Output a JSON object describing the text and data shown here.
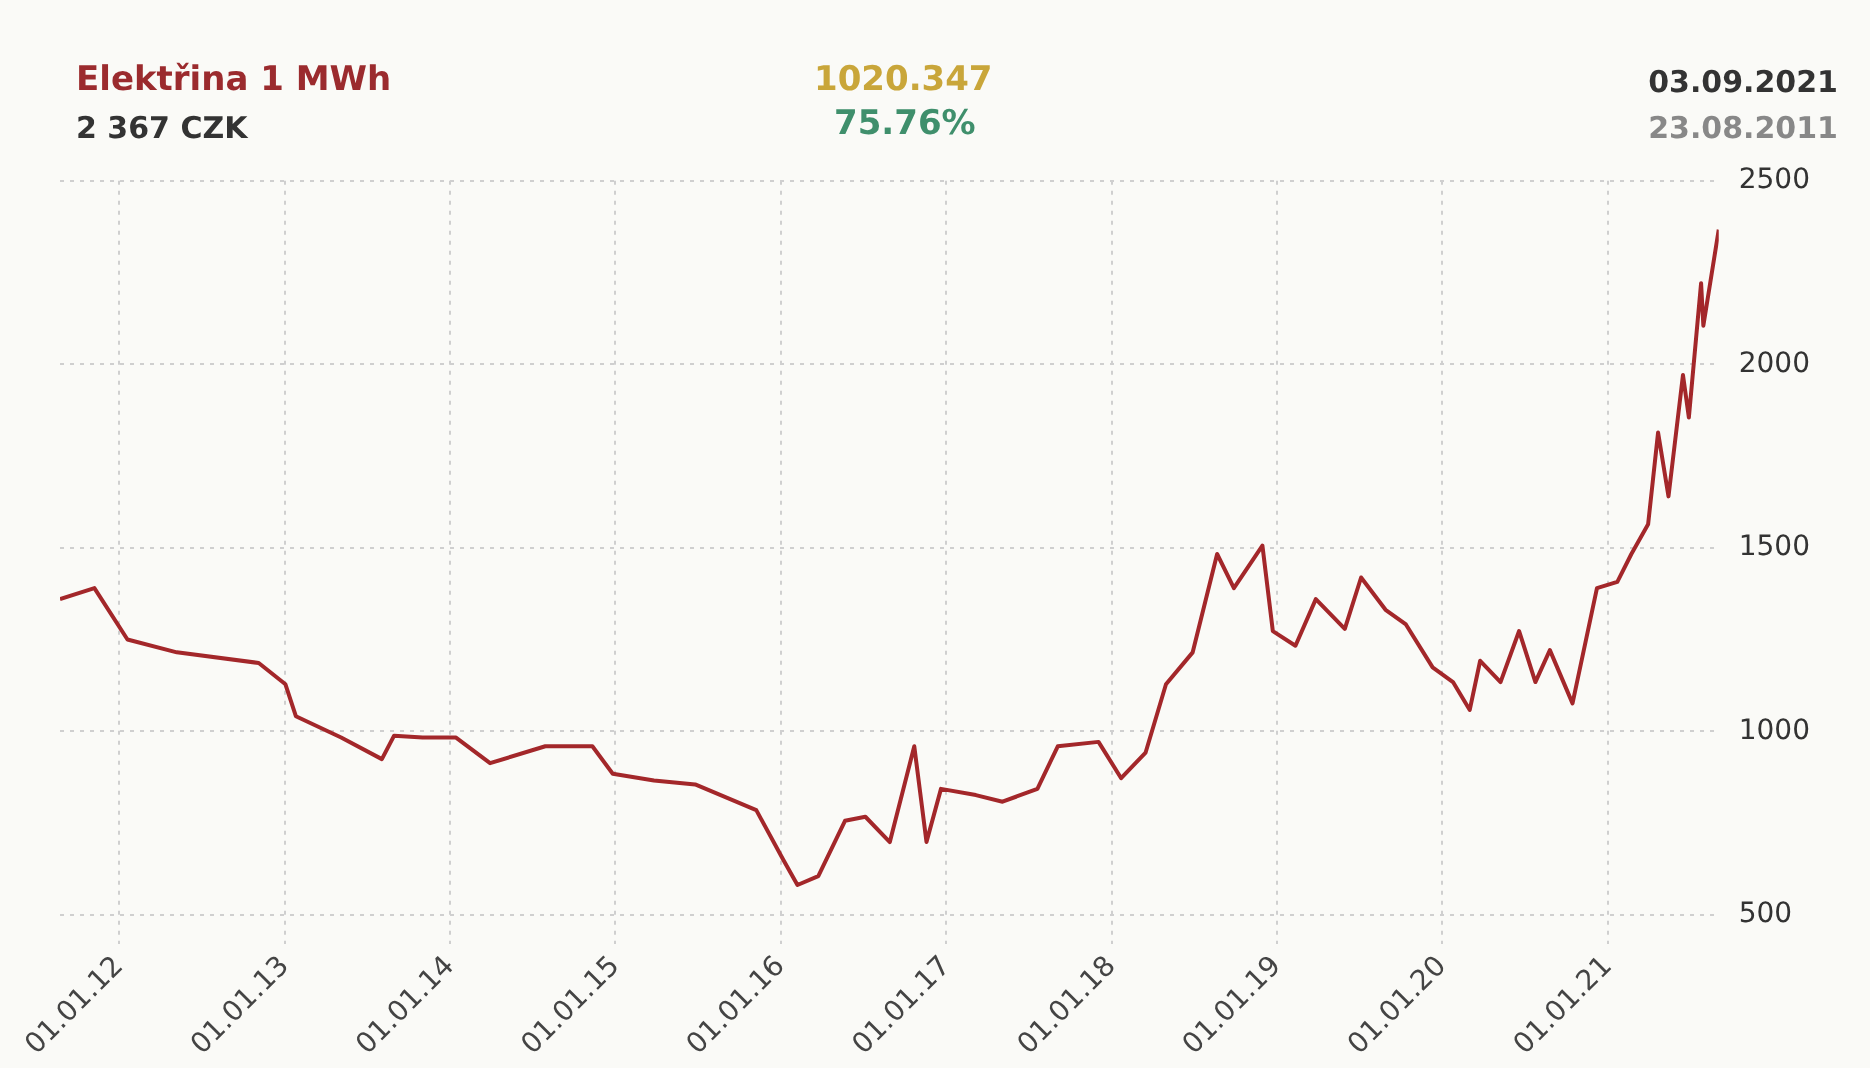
{
  "chart_data": {
    "type": "line",
    "title": "Elektřina 1 MWh",
    "subtitle": "2 367 CZK",
    "annotations": [
      "1020.347",
      "75.76%",
      "03.09.2021",
      "23.08.2011"
    ],
    "x": [
      "2011-08-23",
      "2011-11-07",
      "2012-01-19",
      "2012-05-07",
      "2012-11-04",
      "2013-01-02",
      "2013-01-25",
      "2013-05-05",
      "2013-08-03",
      "2013-08-30",
      "2013-11-01",
      "2014-01-13",
      "2014-03-30",
      "2014-07-30",
      "2014-11-11",
      "2014-12-26",
      "2015-03-27",
      "2015-06-26",
      "2015-11-08",
      "2016-01-06",
      "2016-02-07",
      "2016-03-24",
      "2016-05-22",
      "2016-07-06",
      "2016-08-29",
      "2016-10-22",
      "2016-11-18",
      "2016-12-20",
      "2017-03-07",
      "2017-05-05",
      "2017-07-21",
      "2017-09-04",
      "2017-12-03",
      "2018-01-22",
      "2018-03-17",
      "2018-05-01",
      "2018-06-29",
      "2018-08-22",
      "2018-09-28",
      "2018-11-30",
      "2018-12-23",
      "2019-02-11",
      "2019-03-28",
      "2019-05-31",
      "2019-07-06",
      "2019-08-29",
      "2019-10-13",
      "2019-12-11",
      "2020-01-25",
      "2020-03-02",
      "2020-03-25",
      "2020-05-09",
      "2020-06-19",
      "2020-07-25",
      "2020-08-26",
      "2020-10-15",
      "2020-12-08",
      "2021-01-22",
      "2021-02-22",
      "2021-03-31",
      "2021-04-22",
      "2021-05-15",
      "2021-06-16",
      "2021-06-29",
      "2021-07-26",
      "2021-07-31",
      "2021-09-03"
    ],
    "series": [
      {
        "color": "#a3272a",
        "values": [
          1360,
          1390,
          1250,
          1215,
          1186,
          1128,
          1041,
          983,
          924,
          988,
          983,
          983,
          913,
          959,
          959,
          884,
          866,
          855,
          785,
          651,
          581,
          605,
          756,
          767,
          698,
          959,
          698,
          843,
          826,
          808,
          843,
          959,
          971,
          872,
          942,
          1128,
          1215,
          1483,
          1390,
          1506,
          1273,
          1233,
          1360,
          1279,
          1419,
          1331,
          1291,
          1174,
          1134,
          1058,
          1192,
          1134,
          1273,
          1134,
          1221,
          1076,
          1390,
          1407,
          1483,
          1564,
          1814,
          1640,
          1971,
          1855,
          2221,
          2105,
          2367
        ]
      }
    ],
    "xlim": [
      "2011-08-23",
      "2021-09-03"
    ],
    "xticks": [
      {
        "value": "2012-01-01",
        "label": "01.01.12"
      },
      {
        "value": "2013-01-01",
        "label": "01.01.13"
      },
      {
        "value": "2014-01-01",
        "label": "01.01.14"
      },
      {
        "value": "2015-01-01",
        "label": "01.01.15"
      },
      {
        "value": "2016-01-01",
        "label": "01.01.16"
      },
      {
        "value": "2017-01-01",
        "label": "01.01.17"
      },
      {
        "value": "2018-01-01",
        "label": "01.01.18"
      },
      {
        "value": "2019-01-01",
        "label": "01.01.19"
      },
      {
        "value": "2020-01-01",
        "label": "01.01.20"
      },
      {
        "value": "2021-01-01",
        "label": "01.01.21"
      }
    ],
    "ylim": [
      420,
      2500
    ],
    "yticks": [
      500,
      1000,
      1500,
      2000,
      2500
    ],
    "grid": true,
    "legend": false,
    "marker": "none",
    "line_style": "solid"
  }
}
